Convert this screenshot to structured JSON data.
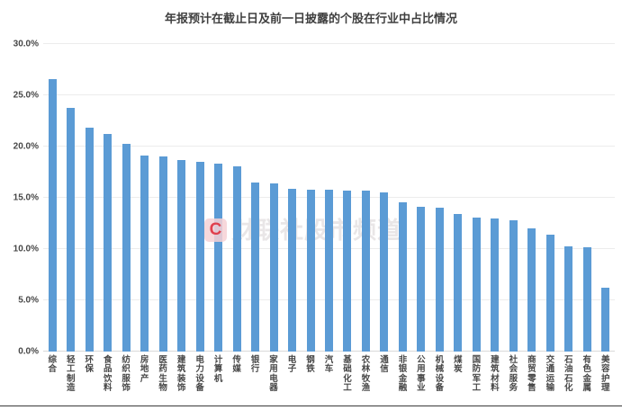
{
  "title": "年报预计在截止日及前一日披露的个股在行业中占比情况",
  "watermark": {
    "logo_letter": "C",
    "text": "财联社股市频道"
  },
  "colors": {
    "bar": "#5B9BD5",
    "grid": "#ececec",
    "axis_line": "#d9d9d9",
    "label": "#474747",
    "title": "#3f3f3f",
    "divider": "#3a3a3a"
  },
  "chart_data": {
    "type": "bar",
    "title": "年报预计在截止日及前一日披露的个股在行业中占比情况",
    "categories": [
      "综合",
      "轻工制造",
      "环保",
      "食品饮料",
      "纺织服饰",
      "房地产",
      "医药生物",
      "建筑装饰",
      "电力设备",
      "计算机",
      "传媒",
      "银行",
      "家用电器",
      "电子",
      "钢铁",
      "汽车",
      "基础化工",
      "农林牧渔",
      "通信",
      "非银金融",
      "公用事业",
      "机械设备",
      "煤炭",
      "国防军工",
      "建筑材料",
      "社会服务",
      "商贸零售",
      "交通运输",
      "石油石化",
      "有色金属",
      "美容护理"
    ],
    "values": [
      26.6,
      23.8,
      21.8,
      21.2,
      20.3,
      19.1,
      19.0,
      18.7,
      18.5,
      18.3,
      18.1,
      16.5,
      16.4,
      15.9,
      15.8,
      15.8,
      15.7,
      15.7,
      15.5,
      14.6,
      14.1,
      14.0,
      13.4,
      13.1,
      13.0,
      12.8,
      12.0,
      11.4,
      10.3,
      10.2,
      6.2
    ],
    "unit": "%",
    "xlabel": "",
    "ylabel": "",
    "ylim": [
      0,
      30
    ],
    "ytick_labels": [
      "0.0%",
      "5.0%",
      "10.0%",
      "15.0%",
      "20.0%",
      "25.0%",
      "30.0%"
    ],
    "grid": true,
    "legend": false,
    "bar_color": "#5B9BD5"
  }
}
